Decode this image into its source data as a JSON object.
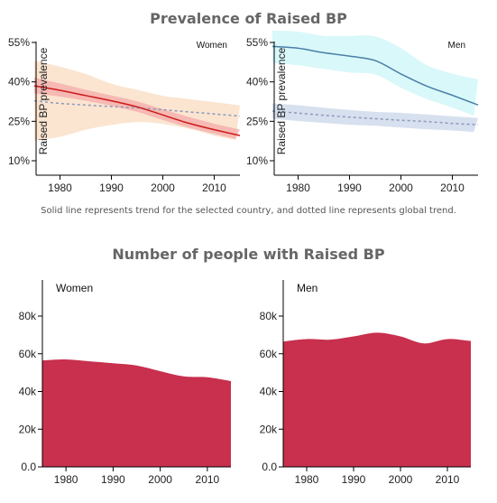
{
  "headings": {
    "prevalence": "Prevalence of Raised BP",
    "number": "Number of people with Raised BP"
  },
  "note": "Solid line represents trend for the selected country, and dotted line represents global trend.",
  "colors": {
    "women_line": "#cc1a1a",
    "women_band": "#f4a6a6",
    "global_band_women": "#f9dcc2",
    "global_line": "#8a9ab8",
    "men_line": "#4a7fa6",
    "men_band": "#c9f5f8",
    "global_band_men": "#c9d6ea",
    "area_fill": "#c8304e",
    "axis": "#000000"
  },
  "chart_data": [
    {
      "type": "line",
      "panel": "Women",
      "ylabel": "Raised BP prevalence",
      "x_ticks": [
        1980,
        1990,
        2000,
        2010
      ],
      "y_ticks": [
        "10%",
        "25%",
        "40%",
        "55%"
      ],
      "xlim": [
        1975,
        2015
      ],
      "ylim": [
        10,
        55
      ],
      "x": [
        1975,
        1980,
        1985,
        1990,
        1995,
        2000,
        2005,
        2010,
        2015
      ],
      "series": [
        {
          "role": "country",
          "values": [
            38.5,
            36.8,
            34.8,
            32.8,
            30.5,
            27.4,
            24.3,
            21.8,
            19.6
          ],
          "lower": [
            35.6,
            34.4,
            32.8,
            30.9,
            28.6,
            25.5,
            22.6,
            20.2,
            17.9
          ],
          "upper": [
            41.6,
            39.4,
            37.0,
            34.8,
            32.6,
            29.6,
            26.7,
            24.1,
            21.9
          ]
        },
        {
          "role": "global",
          "values": [
            32.8,
            31.8,
            31.2,
            30.6,
            30.1,
            29.4,
            28.6,
            27.8,
            27.0
          ],
          "lower": [
            17.6,
            19.1,
            21.8,
            23.6,
            24.7,
            24.0,
            22.2,
            19.6,
            17.6
          ],
          "upper": [
            48.1,
            45.8,
            43.0,
            39.3,
            37.0,
            34.7,
            33.5,
            32.3,
            31.1
          ]
        }
      ]
    },
    {
      "type": "line",
      "panel": "Men",
      "ylabel": "Raised BP prevalence",
      "x_ticks": [
        1980,
        1990,
        2000,
        2010
      ],
      "y_ticks": [
        "10%",
        "25%",
        "40%",
        "55%"
      ],
      "xlim": [
        1975,
        2015
      ],
      "ylim": [
        10,
        55
      ],
      "x": [
        1975,
        1980,
        1985,
        1990,
        1995,
        2000,
        2005,
        2010,
        2015
      ],
      "series": [
        {
          "role": "country",
          "values": [
            53.5,
            52.8,
            51.1,
            49.8,
            48.1,
            43.0,
            38.4,
            34.9,
            31.2
          ],
          "lower": [
            47.2,
            46.3,
            44.9,
            43.6,
            42.8,
            37.8,
            33.5,
            30.2,
            26.5
          ],
          "upper": [
            59.5,
            59.1,
            57.5,
            57.5,
            57.3,
            52.8,
            46.4,
            43.1,
            41.0
          ]
        },
        {
          "role": "global",
          "values": [
            28.9,
            28.1,
            27.3,
            26.6,
            26.0,
            25.4,
            24.9,
            24.2,
            23.7
          ],
          "lower": [
            26.0,
            25.1,
            24.4,
            23.7,
            23.3,
            22.6,
            22.0,
            21.5,
            20.8
          ],
          "upper": [
            31.8,
            31.1,
            30.2,
            29.3,
            28.6,
            28.2,
            27.6,
            26.9,
            26.3
          ]
        }
      ]
    },
    {
      "type": "area",
      "panel": "Women",
      "x_ticks": [
        1980,
        1990,
        2000,
        2010
      ],
      "y_ticks": [
        "0.0",
        "20k",
        "40k",
        "60k",
        "80k"
      ],
      "xlim": [
        1975,
        2015
      ],
      "ylim": [
        0,
        100000
      ],
      "x": [
        1975,
        1980,
        1985,
        1990,
        1995,
        2000,
        2005,
        2010,
        2015
      ],
      "values": [
        56500,
        57000,
        56000,
        55000,
        53800,
        50800,
        48000,
        47500,
        45500
      ]
    },
    {
      "type": "area",
      "panel": "Men",
      "x_ticks": [
        1980,
        1990,
        2000,
        2010
      ],
      "y_ticks": [
        "0.0",
        "20k",
        "40k",
        "60k",
        "80k"
      ],
      "xlim": [
        1975,
        2015
      ],
      "ylim": [
        0,
        100000
      ],
      "x": [
        1975,
        1980,
        1985,
        1990,
        1995,
        2000,
        2005,
        2010,
        2015
      ],
      "values": [
        66500,
        67800,
        67500,
        69200,
        71200,
        69200,
        65500,
        67800,
        66800
      ]
    }
  ]
}
